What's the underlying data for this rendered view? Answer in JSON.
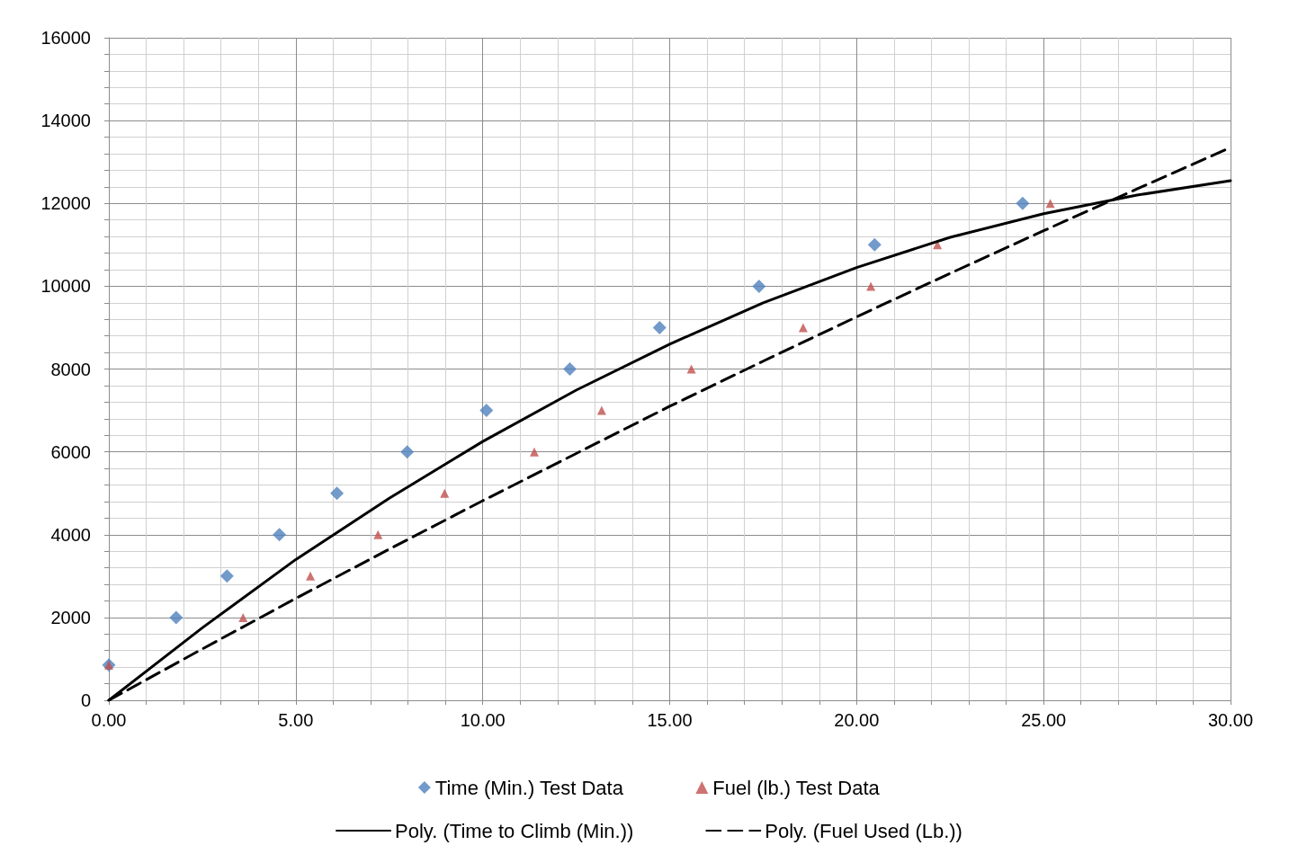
{
  "chart_data": {
    "type": "scatter",
    "xlim": [
      0,
      30
    ],
    "ylim": [
      0,
      16000
    ],
    "xticks": [
      {
        "value": 0,
        "label": "0.00"
      },
      {
        "value": 1,
        "label": null
      },
      {
        "value": 2,
        "label": null
      },
      {
        "value": 3,
        "label": null
      },
      {
        "value": 4,
        "label": null
      },
      {
        "value": 5,
        "label": "5.00"
      },
      {
        "value": 6,
        "label": null
      },
      {
        "value": 7,
        "label": null
      },
      {
        "value": 8,
        "label": null
      },
      {
        "value": 9,
        "label": null
      },
      {
        "value": 10,
        "label": "10.00"
      },
      {
        "value": 11,
        "label": null
      },
      {
        "value": 12,
        "label": null
      },
      {
        "value": 13,
        "label": null
      },
      {
        "value": 14,
        "label": null
      },
      {
        "value": 15,
        "label": "15.00"
      },
      {
        "value": 16,
        "label": null
      },
      {
        "value": 17,
        "label": null
      },
      {
        "value": 18,
        "label": null
      },
      {
        "value": 19,
        "label": null
      },
      {
        "value": 20,
        "label": "20.00"
      },
      {
        "value": 21,
        "label": null
      },
      {
        "value": 22,
        "label": null
      },
      {
        "value": 23,
        "label": null
      },
      {
        "value": 24,
        "label": null
      },
      {
        "value": 25,
        "label": "25.00"
      },
      {
        "value": 26,
        "label": null
      },
      {
        "value": 27,
        "label": null
      },
      {
        "value": 28,
        "label": null
      },
      {
        "value": 29,
        "label": null
      },
      {
        "value": 30,
        "label": "30.00"
      }
    ],
    "yticks": [
      0,
      {
        "value": 400,
        "label": null
      },
      {
        "value": 800,
        "label": null
      },
      {
        "value": 1200,
        "label": null
      },
      {
        "value": 1600,
        "label": null
      },
      2000,
      {
        "value": 2400,
        "label": null
      },
      {
        "value": 2800,
        "label": null
      },
      {
        "value": 3200,
        "label": null
      },
      {
        "value": 3600,
        "label": null
      },
      4000,
      {
        "value": 4400,
        "label": null
      },
      {
        "value": 4800,
        "label": null
      },
      {
        "value": 5200,
        "label": null
      },
      {
        "value": 5600,
        "label": null
      },
      6000,
      {
        "value": 6400,
        "label": null
      },
      {
        "value": 6800,
        "label": null
      },
      {
        "value": 7200,
        "label": null
      },
      {
        "value": 7600,
        "label": null
      },
      8000,
      {
        "value": 8400,
        "label": null
      },
      {
        "value": 8800,
        "label": null
      },
      {
        "value": 9200,
        "label": null
      },
      {
        "value": 9600,
        "label": null
      },
      10000,
      {
        "value": 10400,
        "label": null
      },
      {
        "value": 10800,
        "label": null
      },
      {
        "value": 11200,
        "label": null
      },
      {
        "value": 11600,
        "label": null
      },
      12000,
      {
        "value": 12400,
        "label": null
      },
      {
        "value": 12800,
        "label": null
      },
      {
        "value": 13200,
        "label": null
      },
      {
        "value": 13600,
        "label": null
      },
      14000,
      {
        "value": 14400,
        "label": null
      },
      {
        "value": 14800,
        "label": null
      },
      {
        "value": 15200,
        "label": null
      },
      {
        "value": 15600,
        "label": null
      },
      16000
    ],
    "grid": true,
    "legend": "bottom",
    "series": [
      {
        "name": "Time (Min.) Test Data",
        "marker": "diamond",
        "color": "#4f81bd",
        "x": [
          0,
          1.8,
          3.16,
          4.56,
          6.1,
          7.98,
          10.1,
          12.33,
          14.73,
          17.39,
          20.48,
          24.44
        ],
        "values": [
          850,
          2000,
          3000,
          4000,
          5000,
          6000,
          7000,
          8000,
          9000,
          10000,
          11000,
          12000
        ]
      },
      {
        "name": "Fuel (lb.) Test Data",
        "marker": "triangle",
        "color": "#c0504d",
        "x": [
          0,
          3.59,
          5.39,
          7.2,
          8.98,
          11.38,
          13.18,
          15.58,
          18.57,
          20.38,
          22.16,
          25.18
        ],
        "values": [
          850,
          2000,
          3000,
          4000,
          5000,
          6000,
          7000,
          8000,
          9000,
          10000,
          11000,
          12000
        ]
      },
      {
        "name": "Poly. (Time to Climb (Min.))",
        "type": "line",
        "marker": "none",
        "line_style": "solid",
        "color": "#000000",
        "x": [
          0,
          2.5,
          5,
          7.5,
          10,
          12.5,
          15,
          17.5,
          20,
          22.5,
          25,
          27.5,
          30
        ],
        "values": [
          0,
          1750,
          3400,
          4880,
          6250,
          7490,
          8600,
          9600,
          10450,
          11180,
          11750,
          12200,
          12550
        ]
      },
      {
        "name": "Poly. (Fuel Used (Lb.))",
        "type": "line",
        "marker": "none",
        "line_style": "dashed",
        "color": "#000000",
        "x": [
          0,
          2.5,
          5,
          7.5,
          10,
          12.5,
          15,
          17.5,
          20,
          22.5,
          25,
          27.5,
          30
        ],
        "values": [
          0,
          1240,
          2460,
          3650,
          4820,
          5960,
          7100,
          8190,
          9260,
          10310,
          11340,
          12350,
          13350
        ]
      }
    ]
  }
}
